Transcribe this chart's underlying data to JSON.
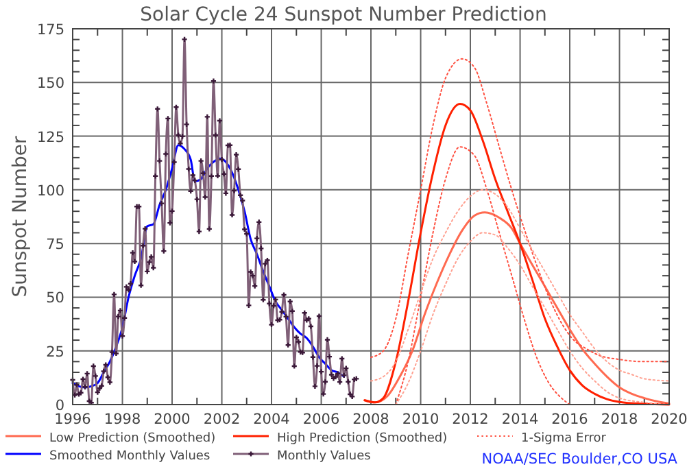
{
  "chart_data": {
    "type": "line",
    "title": "Solar Cycle 24 Sunspot Number Prediction",
    "ylabel": "Sunspot Number",
    "xlim": [
      "1996",
      "2020"
    ],
    "xticks": [
      "1996",
      "1998",
      "2000",
      "2002",
      "2004",
      "2006",
      "2008",
      "2010",
      "2012",
      "2014",
      "2016",
      "2018",
      "2020"
    ],
    "ylim": [
      0,
      175
    ],
    "yticks": [
      0,
      25,
      50,
      75,
      100,
      125,
      150,
      175
    ],
    "grid": true,
    "legend": "bottom",
    "annotations": [
      "NOAA/SEC Boulder,CO USA"
    ],
    "series": [
      {
        "name": "Low Prediction (Smoothed)",
        "color": "#ff6a50",
        "line_style": "solid",
        "x": [
          "2007-10",
          "2008-03",
          "2008-09",
          "2009-03",
          "2009-09",
          "2010-03",
          "2010-09",
          "2011-03",
          "2011-09",
          "2012-03",
          "2012-08",
          "2013-03",
          "2013-09",
          "2014-01",
          "2014-07",
          "2015-01",
          "2015-07",
          "2016-01",
          "2016-07",
          "2017-01",
          "2017-07",
          "2018-01",
          "2018-07",
          "2019-01",
          "2019-07",
          "2020-01"
        ],
        "values": [
          2,
          1,
          4,
          13,
          25,
          42,
          57,
          70,
          81,
          88,
          89.5,
          87,
          82,
          75,
          65,
          55,
          45,
          35,
          26,
          19,
          13,
          8,
          5,
          3,
          1.5,
          0.5
        ]
      },
      {
        "name": "High Prediction (Smoothed)",
        "color": "#ff2000",
        "line_style": "solid",
        "x": [
          "2007-10",
          "2008-03",
          "2008-07",
          "2009-01",
          "2009-07",
          "2010-01",
          "2010-07",
          "2011-01",
          "2011-08",
          "2012-01",
          "2012-07",
          "2013-01",
          "2013-07",
          "2014-01",
          "2014-07",
          "2015-01",
          "2015-07",
          "2016-01",
          "2016-07",
          "2017-01",
          "2017-07",
          "2018-01",
          "2019-01",
          "2020-01"
        ],
        "values": [
          2,
          1,
          3,
          20,
          48,
          80,
          108,
          130,
          140,
          137,
          123,
          105,
          90,
          75,
          58,
          40,
          27,
          16,
          9,
          5,
          2.5,
          1.2,
          0.3,
          0
        ]
      },
      {
        "name": "1-Sigma Error",
        "color": "#ff5040",
        "line_style": "dotted",
        "x": [
          "2008-01",
          "2008-07",
          "2009-01",
          "2009-07",
          "2010-01",
          "2010-07",
          "2011-01",
          "2011-09",
          "2012-03",
          "2012-09",
          "2013-03",
          "2013-09",
          "2014-03",
          "2014-09",
          "2015-03",
          "2015-09",
          "2016-03",
          "2016-09",
          "2017-03",
          "2018-01",
          "2019-01",
          "2020-01"
        ],
        "values": [
          22,
          25,
          40,
          70,
          100,
          130,
          152,
          161,
          157,
          140,
          120,
          100,
          82,
          65,
          50,
          38,
          30,
          26,
          23,
          21,
          20,
          20
        ]
      },
      {
        "name": "Smoothed Monthly Values",
        "color": "#0000ff",
        "line_style": "solid",
        "x": [
          "1996-01",
          "1996-04",
          "1996-07",
          "1996-10",
          "1997-01",
          "1997-04",
          "1997-07",
          "1997-10",
          "1998-01",
          "1998-04",
          "1998-07",
          "1998-10",
          "1999-01",
          "1999-04",
          "1999-07",
          "1999-10",
          "2000-01",
          "2000-04",
          "2000-07",
          "2000-10",
          "2000-12",
          "2001-03",
          "2001-06",
          "2001-09",
          "2001-12",
          "2002-03",
          "2002-06",
          "2002-09",
          "2002-12",
          "2003-03",
          "2003-06",
          "2003-09",
          "2003-12",
          "2004-03",
          "2004-06",
          "2004-09",
          "2004-12",
          "2005-03",
          "2005-06",
          "2005-09",
          "2005-12",
          "2006-03",
          "2006-06",
          "2006-09",
          "2006-12"
        ],
        "values": [
          10,
          8.5,
          8,
          8.5,
          10,
          15,
          20,
          27,
          36,
          50,
          60,
          68,
          83,
          84,
          93,
          100,
          110,
          120.8,
          119,
          114,
          104,
          105,
          110,
          113,
          114.6,
          113,
          108,
          100,
          90,
          77,
          70,
          62,
          55,
          48,
          44,
          40,
          36,
          33,
          31,
          27,
          22,
          19,
          16,
          15,
          13
        ]
      },
      {
        "name": "Monthly Values",
        "color": "#806078",
        "line_style": "solid",
        "marker": "cross",
        "x": [
          "1996-01",
          "1996-02",
          "1996-03",
          "1996-04",
          "1996-05",
          "1996-06",
          "1996-07",
          "1996-08",
          "1996-09",
          "1996-10",
          "1996-11",
          "1996-12",
          "1997-01",
          "1997-02",
          "1997-03",
          "1997-04",
          "1997-05",
          "1997-06",
          "1997-07",
          "1997-08",
          "1997-09",
          "1997-10",
          "1997-11",
          "1997-12",
          "1998-01",
          "1998-02",
          "1998-03",
          "1998-04",
          "1998-05",
          "1998-06",
          "1998-07",
          "1998-08",
          "1998-09",
          "1998-10",
          "1998-11",
          "1998-12",
          "1999-01",
          "1999-02",
          "1999-03",
          "1999-04",
          "1999-05",
          "1999-06",
          "1999-07",
          "1999-08",
          "1999-09",
          "1999-10",
          "1999-11",
          "1999-12",
          "2000-01",
          "2000-02",
          "2000-03",
          "2000-04",
          "2000-05",
          "2000-06",
          "2000-07",
          "2000-08",
          "2000-09",
          "2000-10",
          "2000-11",
          "2000-12",
          "2001-01",
          "2001-02",
          "2001-03",
          "2001-04",
          "2001-05",
          "2001-06",
          "2001-07",
          "2001-08",
          "2001-09",
          "2001-10",
          "2001-11",
          "2001-12",
          "2002-01",
          "2002-02",
          "2002-03",
          "2002-04",
          "2002-05",
          "2002-06",
          "2002-07",
          "2002-08",
          "2002-09",
          "2002-10",
          "2002-11",
          "2002-12",
          "2003-01",
          "2003-02",
          "2003-03",
          "2003-04",
          "2003-05",
          "2003-06",
          "2003-07",
          "2003-08",
          "2003-09",
          "2003-10",
          "2003-11",
          "2003-12",
          "2004-01",
          "2004-02",
          "2004-03",
          "2004-04",
          "2004-05",
          "2004-06",
          "2004-07",
          "2004-08",
          "2004-09",
          "2004-10",
          "2004-11",
          "2004-12",
          "2005-01",
          "2005-02",
          "2005-03",
          "2005-04",
          "2005-05",
          "2005-06",
          "2005-07",
          "2005-08",
          "2005-09",
          "2005-10",
          "2005-11",
          "2005-12",
          "2006-01",
          "2006-02",
          "2006-03",
          "2006-04",
          "2006-05",
          "2006-06",
          "2006-07",
          "2006-08",
          "2006-09",
          "2006-10",
          "2006-11",
          "2006-12",
          "2007-01",
          "2007-02",
          "2007-03",
          "2007-04",
          "2007-05",
          "2007-06"
        ],
        "values": [
          11.5,
          4.4,
          9.2,
          4.8,
          5.5,
          11.8,
          8.2,
          14.4,
          1.6,
          0.9,
          17.9,
          13.3,
          5.7,
          7.6,
          8.7,
          15.5,
          18.5,
          12.7,
          10.4,
          24.4,
          51.3,
          23.8,
          41,
          43.8,
          31.9,
          40.3,
          54.8,
          53.4,
          56.3,
          70.7,
          66.6,
          92.2,
          92.2,
          55.5,
          74,
          81.9,
          62,
          66.3,
          68.8,
          63.7,
          106.4,
          137.7,
          113.5,
          93.7,
          71.5,
          116.7,
          133.2,
          84.6,
          90.1,
          112.9,
          138.5,
          125.5,
          121.6,
          124.9,
          170.1,
          130.5,
          109.7,
          99.4,
          106.8,
          104.4,
          95.6,
          80.6,
          113.5,
          107.7,
          96.6,
          134,
          81.8,
          106.4,
          150.7,
          125.5,
          106.5,
          132.2,
          114.1,
          107.4,
          98.4,
          120.7,
          120.8,
          88.3,
          99.6,
          116.4,
          109.6,
          97.5,
          95,
          81.6,
          79.5,
          46.2,
          61.8,
          60,
          55.2,
          77.4,
          85,
          72.7,
          48.8,
          65.6,
          67.2,
          47,
          37.2,
          46,
          48.9,
          39.3,
          39.5,
          43.2,
          51.1,
          40.9,
          27.7,
          48,
          43.5,
          17.9,
          31.3,
          29.2,
          24.5,
          24.2,
          42.7,
          39.3,
          40,
          36.4,
          22.1,
          8.5,
          18,
          41.2,
          15.3,
          4.9,
          10.6,
          30.2,
          22.3,
          13.9,
          12.2,
          12.9,
          14.4,
          10.5,
          21.4,
          13.6,
          16.9,
          10.6,
          4.8,
          3.7,
          11.7,
          12
        ]
      },
      {
        "color": "#ff5040",
        "line_style": "dotted",
        "x": [
          "2009-01",
          "2009-07",
          "2010-01",
          "2010-07",
          "2011-01",
          "2011-08",
          "2012-03",
          "2012-09",
          "2013-03",
          "2013-09",
          "2014-03",
          "2014-09",
          "2015-03",
          "2015-09",
          "2016-01"
        ],
        "values": [
          0,
          20,
          50,
          80,
          105,
          120,
          116,
          100,
          80,
          60,
          40,
          22,
          10,
          3,
          0
        ]
      },
      {
        "color": "#ffa090",
        "line_style": "dotted",
        "x": [
          "2008-01",
          "2008-07",
          "2009-01",
          "2009-07",
          "2010-01",
          "2010-07",
          "2011-01",
          "2011-07",
          "2012-01",
          "2012-07",
          "2013-01",
          "2013-07",
          "2014-01",
          "2014-07",
          "2015-01",
          "2015-07",
          "2016-01",
          "2016-07",
          "2017-01",
          "2017-07",
          "2018-01",
          "2018-07",
          "2019-01",
          "2020-01"
        ],
        "values": [
          11,
          13,
          20,
          35,
          52,
          68,
          80,
          90,
          97,
          100,
          98,
          92,
          82,
          72,
          62,
          52,
          42,
          34,
          26,
          20,
          16,
          14,
          12,
          11
        ]
      },
      {
        "color": "#ffa090",
        "line_style": "dotted",
        "x": [
          "2009-01",
          "2009-07",
          "2010-01",
          "2010-07",
          "2011-01",
          "2011-07",
          "2012-01",
          "2012-07",
          "2013-01",
          "2013-07",
          "2014-01",
          "2014-07",
          "2015-01",
          "2015-07",
          "2016-01",
          "2016-07",
          "2017-01",
          "2017-07",
          "2018-01",
          "2019-01",
          "2020-01"
        ],
        "values": [
          0,
          10,
          25,
          42,
          56,
          68,
          76,
          80,
          79,
          73,
          65,
          55,
          45,
          35,
          25,
          17,
          11,
          6,
          3,
          1,
          0
        ]
      }
    ]
  }
}
